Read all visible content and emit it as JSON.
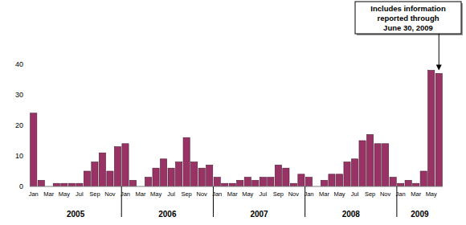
{
  "chart_data": {
    "type": "bar",
    "categories": [
      "Jan",
      null,
      "Mar",
      null,
      "May",
      null,
      "Jul",
      null,
      "Sep",
      null,
      "Nov",
      null,
      "Jan",
      null,
      "Mar",
      null,
      "May",
      null,
      "Jul",
      null,
      "Sep",
      null,
      "Nov",
      null,
      "Jan",
      null,
      "Mar",
      null,
      "May",
      null,
      "Jul",
      null,
      "Sep",
      null,
      "Nov",
      null,
      "Jan",
      null,
      "Mar",
      null,
      "May",
      null,
      "Jul",
      null,
      "Sep",
      null,
      "Nov",
      null,
      "Jan",
      null,
      "Mar",
      null,
      "May",
      null
    ],
    "values": [
      24,
      2,
      0,
      1,
      1,
      1,
      1,
      5,
      8,
      11,
      5,
      13,
      14,
      2,
      0,
      3,
      6,
      9,
      6,
      8,
      16,
      8,
      6,
      7,
      3,
      1,
      1,
      2,
      3,
      2,
      3,
      3,
      7,
      6,
      1,
      4,
      3,
      0,
      2,
      4,
      4,
      8,
      9,
      15,
      17,
      14,
      14,
      3,
      1,
      2,
      1,
      5,
      38,
      37
    ],
    "x_groups": [
      "2005",
      "2006",
      "2007",
      "2008",
      "2009"
    ],
    "annotation": [
      "Includes information",
      "reported through",
      "June 30, 2009"
    ],
    "color": "#993366",
    "ylim": [
      0,
      40
    ],
    "yticks": [
      0,
      10,
      20,
      30,
      40
    ],
    "grid": false
  }
}
